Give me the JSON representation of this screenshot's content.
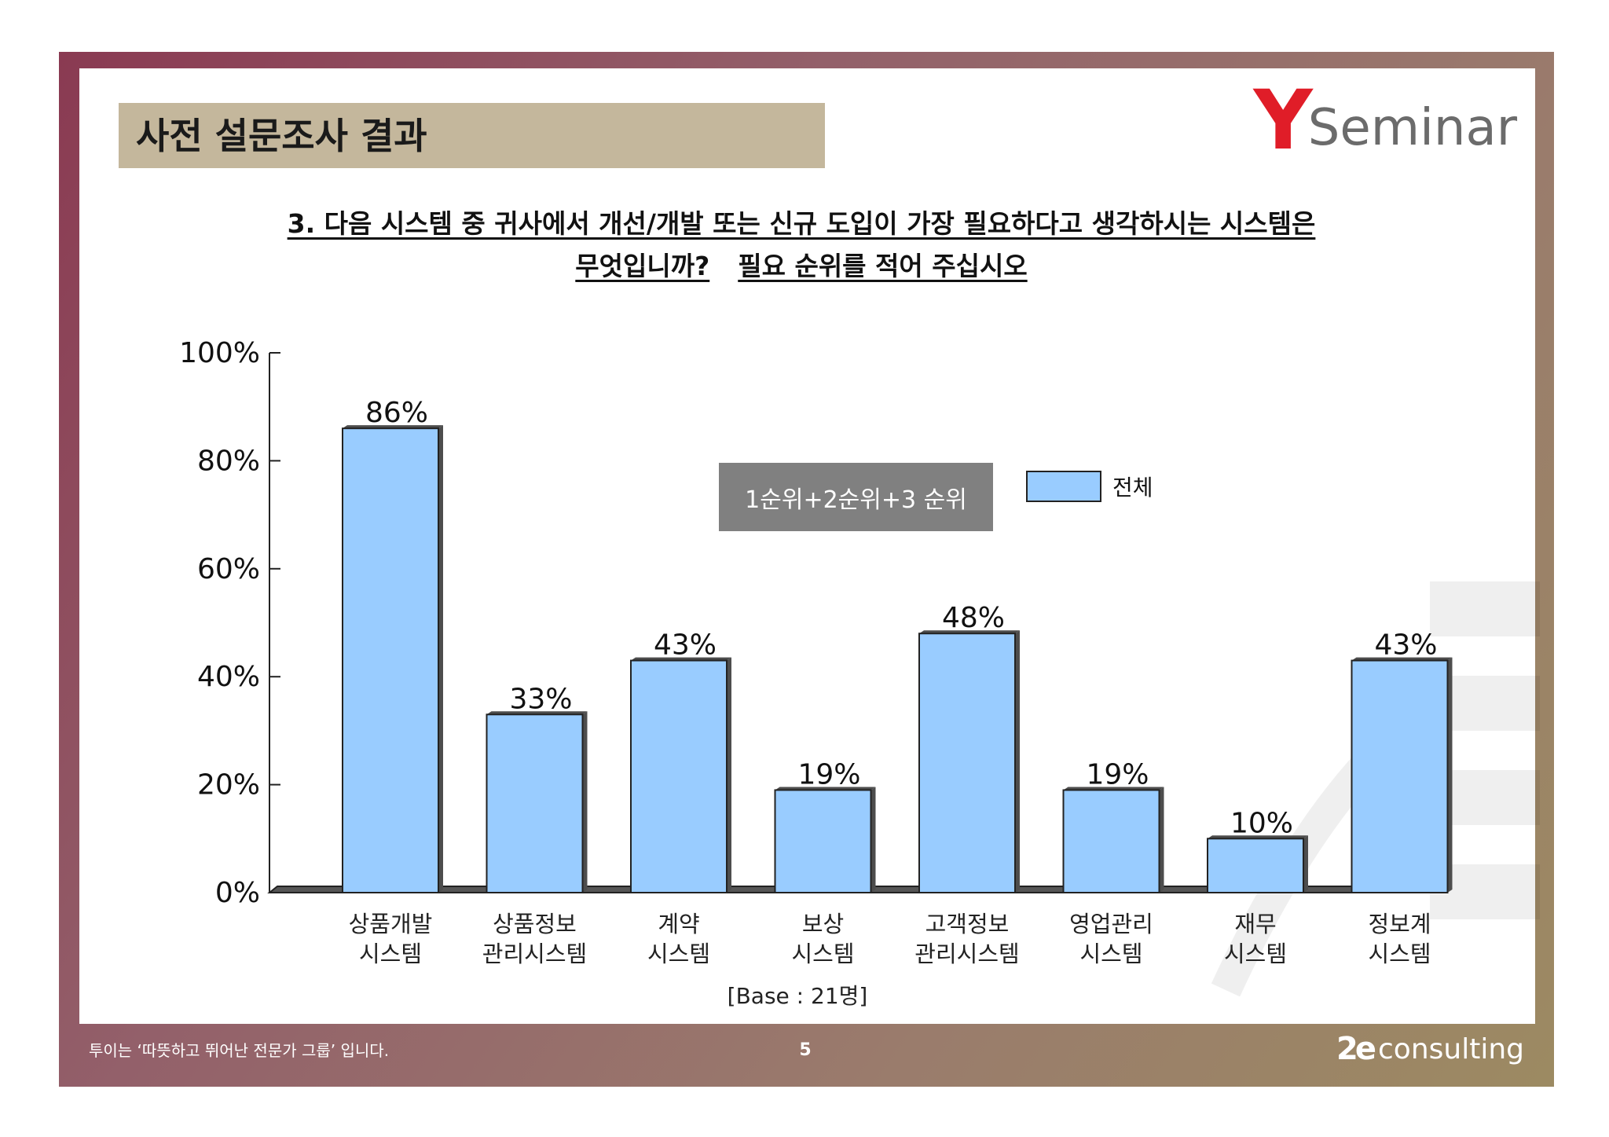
{
  "header": {
    "title": "사전 설문조사 결과",
    "logo_y": "Y",
    "logo_word": "Seminar"
  },
  "question": {
    "line1": "3. 다음 시스템 중 귀사에서 개선/개발 또는 신규 도입이 가장 필요하다고 생각하시는 시스템은",
    "line2a": "무엇입니까?",
    "line2b": "필요 순위를 적어 주십시오"
  },
  "chart_data": {
    "type": "bar",
    "categories": [
      [
        "상품개발",
        "시스템"
      ],
      [
        "상품정보",
        "관리시스템"
      ],
      [
        "계약",
        "시스템"
      ],
      [
        "보상",
        "시스템"
      ],
      [
        "고객정보",
        "관리시스템"
      ],
      [
        "영업관리",
        "시스템"
      ],
      [
        "재무",
        "시스템"
      ],
      [
        "정보계",
        "시스템"
      ]
    ],
    "series": [
      {
        "name": "전체",
        "values": [
          86,
          33,
          43,
          19,
          48,
          19,
          10,
          43
        ]
      }
    ],
    "value_labels": [
      "86%",
      "33%",
      "43%",
      "19%",
      "48%",
      "19%",
      "10%",
      "43%"
    ],
    "ylim": [
      0,
      100
    ],
    "yticks": [
      0,
      20,
      40,
      60,
      80,
      100
    ],
    "ytick_labels": [
      "0%",
      "20%",
      "40%",
      "60%",
      "80%",
      "100%"
    ],
    "legend_badge": "1순위+2순위+3 순위",
    "base_note": "[Base :  21명]",
    "bar_color": "#99ccff",
    "bar_side_color": "#4d4d4d",
    "grid": false
  },
  "footer": {
    "tagline": "투이는 ‘따뜻하고 뛰어난 전문가 그룹’ 입니다.",
    "page": "5",
    "logo_mark": "2e",
    "logo_word": "consulting"
  }
}
